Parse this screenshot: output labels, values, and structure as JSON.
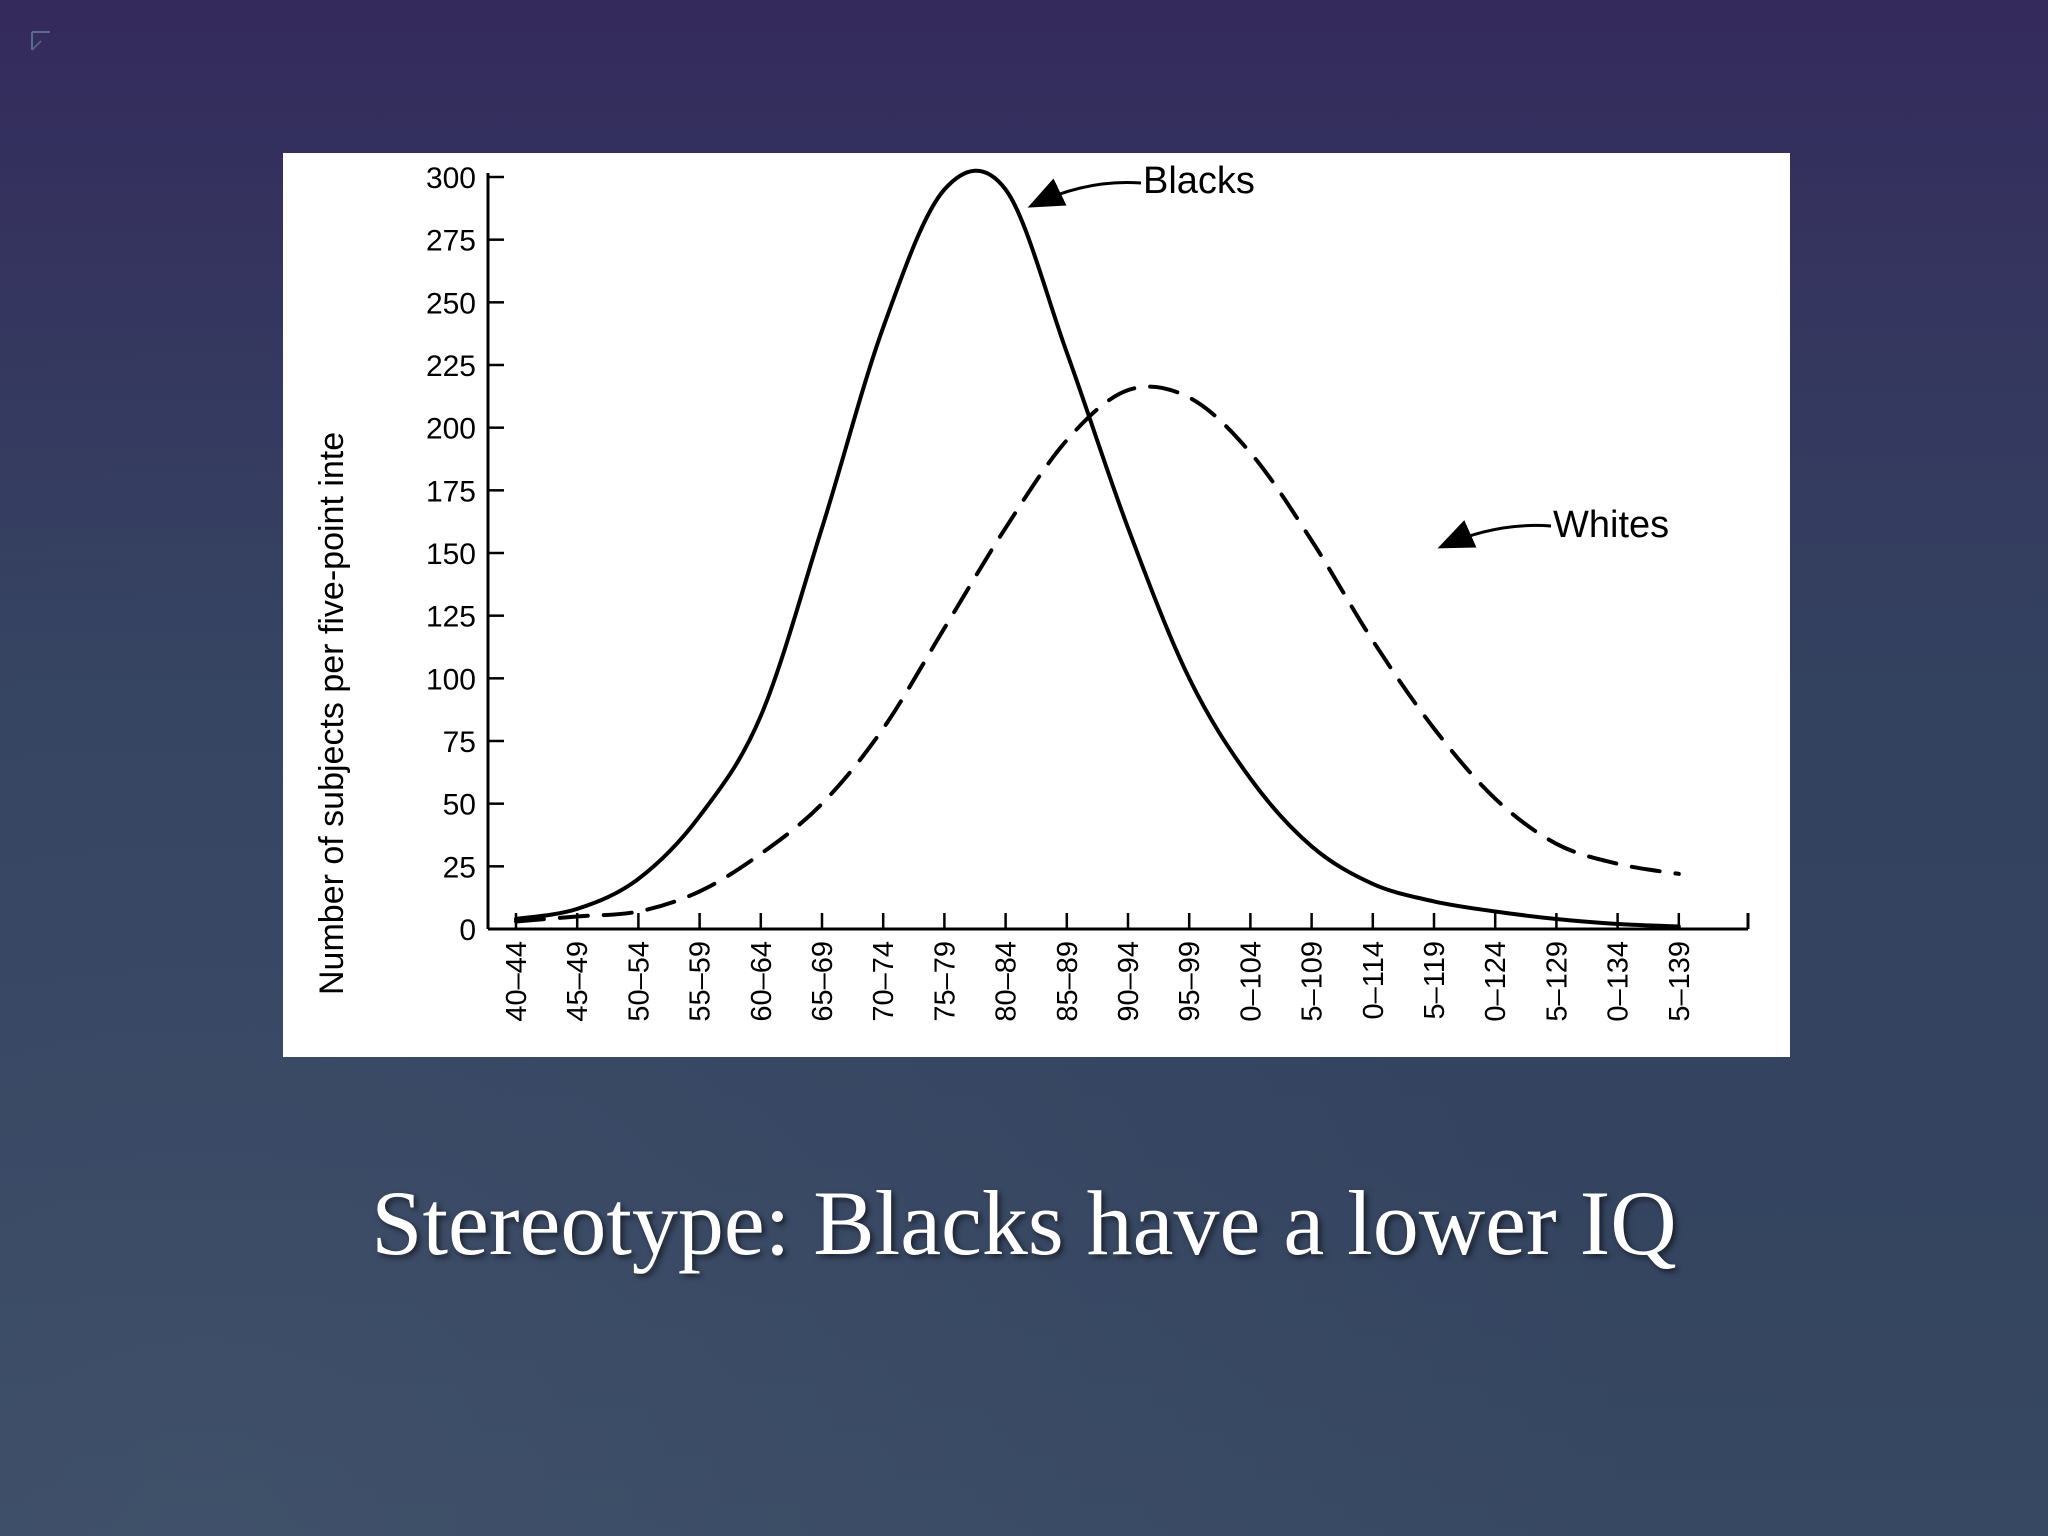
{
  "slide": {
    "caption": "Stereotype: Blacks have a lower IQ"
  },
  "chart_data": {
    "type": "line",
    "ylabel": "Number of subjects per five-point inte",
    "xlabel": "",
    "ylim": [
      0,
      300
    ],
    "yticks": [
      0,
      25,
      50,
      75,
      100,
      125,
      150,
      175,
      200,
      225,
      250,
      275,
      300
    ],
    "categories": [
      "40–44",
      "45–49",
      "50–54",
      "55–59",
      "60–64",
      "65–69",
      "70–74",
      "75–79",
      "80–84",
      "85–89",
      "90–94",
      "95–99",
      "0–104",
      "5–109",
      "0–114",
      "5–119",
      "0–124",
      "5–129",
      "0–134",
      "5–139"
    ],
    "series": [
      {
        "name": "Blacks",
        "style": "solid",
        "values": [
          4,
          8,
          20,
          45,
          85,
          160,
          240,
          295,
          295,
          230,
          160,
          100,
          60,
          33,
          18,
          11,
          7,
          4,
          2,
          1
        ]
      },
      {
        "name": "Whites",
        "style": "dashed",
        "values": [
          3,
          5,
          7,
          15,
          30,
          50,
          80,
          120,
          160,
          195,
          215,
          212,
          190,
          155,
          115,
          80,
          52,
          34,
          26,
          22
        ]
      }
    ],
    "annotations": [
      {
        "text": "Blacks",
        "series": "Blacks"
      },
      {
        "text": "Whites",
        "series": "Whites"
      }
    ],
    "grid": false,
    "legend": "none",
    "colors": {
      "line": "#000000",
      "background": "#ffffff"
    }
  }
}
